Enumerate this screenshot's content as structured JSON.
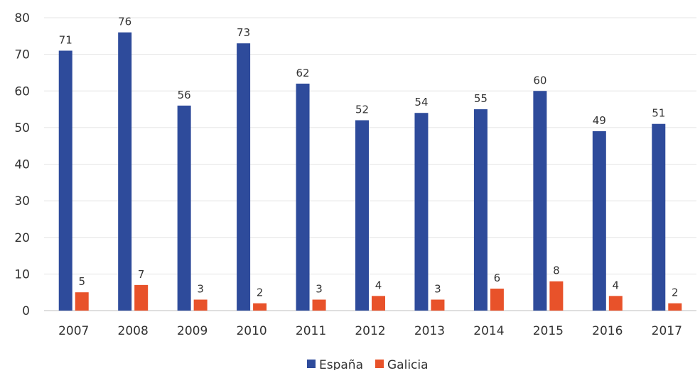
{
  "chart_data": {
    "type": "bar",
    "categories": [
      "2007",
      "2008",
      "2009",
      "2010",
      "2011",
      "2012",
      "2013",
      "2014",
      "2015",
      "2016",
      "2017"
    ],
    "series": [
      {
        "name": "España",
        "color": "#2E4B9B",
        "values": [
          71,
          76,
          56,
          73,
          62,
          52,
          54,
          55,
          60,
          49,
          51
        ]
      },
      {
        "name": "Galicia",
        "color": "#E8522A",
        "values": [
          5,
          7,
          3,
          2,
          3,
          4,
          3,
          6,
          8,
          4,
          2
        ]
      }
    ],
    "yticks": [
      "0",
      "10",
      "20",
      "30",
      "40",
      "50",
      "60",
      "70",
      "80"
    ],
    "ylim": [
      0,
      80
    ],
    "grid": true,
    "legend_position": "bottom"
  }
}
